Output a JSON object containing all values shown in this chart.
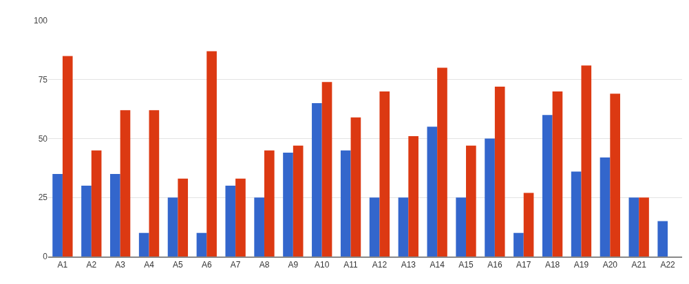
{
  "chart_data": {
    "type": "bar",
    "categories": [
      "A1",
      "A2",
      "A3",
      "A4",
      "A5",
      "A6",
      "A7",
      "A8",
      "A9",
      "A10",
      "A11",
      "A12",
      "A13",
      "A14",
      "A15",
      "A16",
      "A17",
      "A18",
      "A19",
      "A20",
      "A21",
      "A22"
    ],
    "series": [
      {
        "color": "#3366cc",
        "values": [
          35,
          30,
          35,
          10,
          25,
          10,
          30,
          25,
          44,
          65,
          45,
          25,
          25,
          55,
          25,
          50,
          10,
          60,
          36,
          42,
          25,
          15
        ]
      },
      {
        "color": "#dc3912",
        "values": [
          85,
          45,
          62,
          62,
          33,
          87,
          33,
          45,
          47,
          74,
          59,
          70,
          51,
          80,
          47,
          72,
          27,
          70,
          81,
          69,
          25,
          null
        ]
      }
    ],
    "ylim": [
      0,
      100
    ],
    "yticks": [
      0,
      25,
      50,
      75,
      100
    ],
    "grid": "y"
  }
}
